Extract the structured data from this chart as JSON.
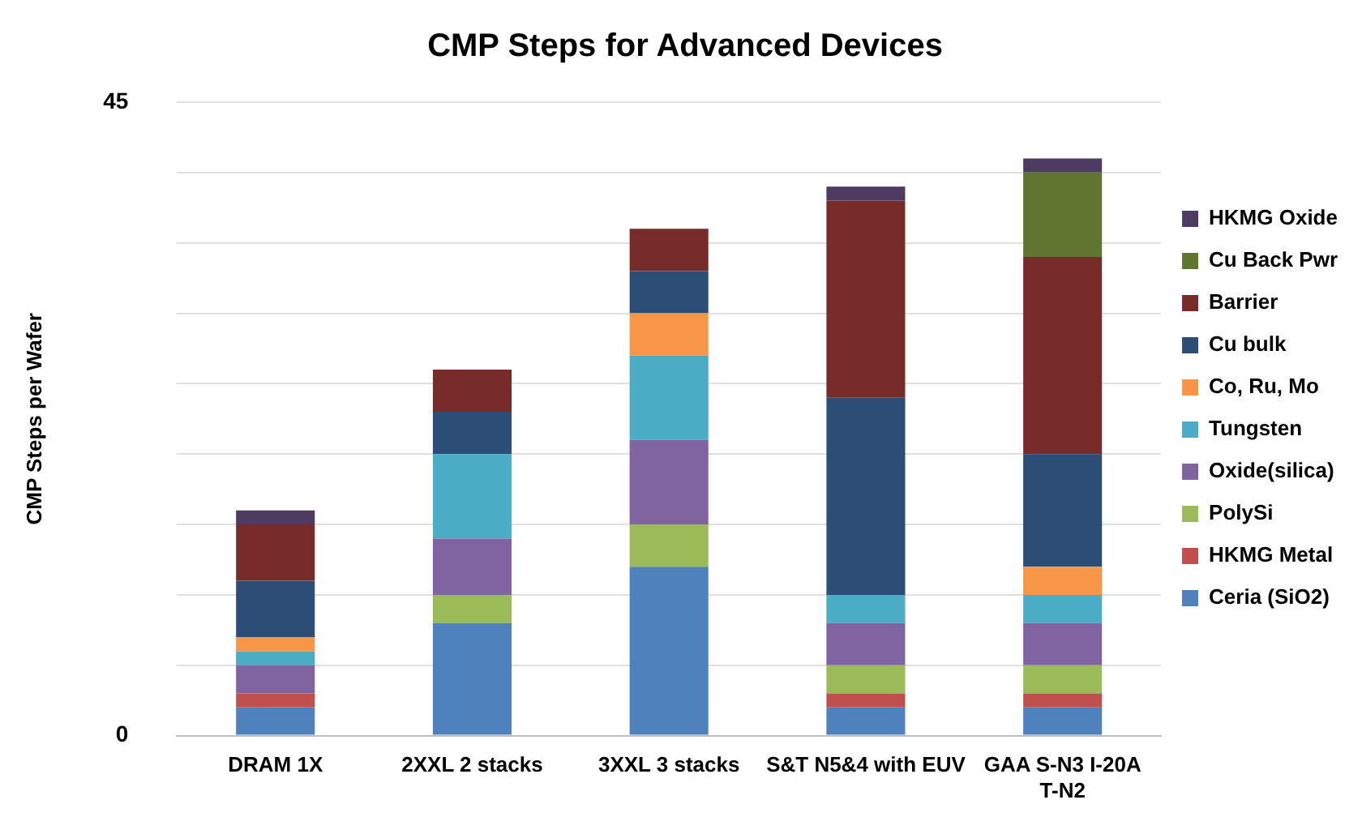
{
  "chart_data": {
    "type": "bar",
    "stacked": true,
    "title": "CMP Steps for Advanced Devices",
    "ylabel": "CMP Steps per Wafer",
    "categories": [
      "DRAM 1X",
      "2XXL 2 stacks",
      "3XXL 3 stacks",
      "S&T N5&4 with EUV",
      "GAA S-N3 I-20A T-N2"
    ],
    "series": [
      {
        "name": "Ceria (SiO2)",
        "color": "#4f81bd",
        "values": [
          2,
          8,
          12,
          2,
          2
        ]
      },
      {
        "name": "HKMG Metal",
        "color": "#c0504d",
        "values": [
          1,
          0,
          0,
          1,
          1
        ]
      },
      {
        "name": "PolySi",
        "color": "#9bbb59",
        "values": [
          0,
          2,
          3,
          2,
          2
        ]
      },
      {
        "name": "Oxide(silica)",
        "color": "#8064a2",
        "values": [
          2,
          4,
          6,
          3,
          3
        ]
      },
      {
        "name": "Tungsten",
        "color": "#4bacc6",
        "values": [
          1,
          6,
          6,
          2,
          2
        ]
      },
      {
        "name": "Co, Ru, Mo",
        "color": "#f79646",
        "values": [
          1,
          0,
          3,
          0,
          2
        ]
      },
      {
        "name": "Cu bulk",
        "color": "#2c4d75",
        "values": [
          4,
          3,
          3,
          14,
          8
        ]
      },
      {
        "name": "Barrier",
        "color": "#772c2a",
        "values": [
          4,
          3,
          3,
          14,
          14
        ]
      },
      {
        "name": "Cu Back Pwr",
        "color": "#5f7530",
        "values": [
          0,
          0,
          0,
          0,
          6
        ]
      },
      {
        "name": "HKMG Oxide",
        "color": "#4d3b62",
        "values": [
          1,
          0,
          0,
          1,
          1
        ]
      }
    ],
    "ylim": [
      0,
      45
    ],
    "yticks": [
      0,
      {
        "value": 5,
        "label": null
      },
      {
        "value": 10,
        "label": null
      },
      {
        "value": 15,
        "label": null
      },
      {
        "value": 20,
        "label": null
      },
      {
        "value": 25,
        "label": null
      },
      {
        "value": 30,
        "label": null
      },
      {
        "value": 35,
        "label": null
      },
      {
        "value": 40,
        "label": null
      },
      45
    ],
    "grid": "y",
    "legend": "right"
  }
}
